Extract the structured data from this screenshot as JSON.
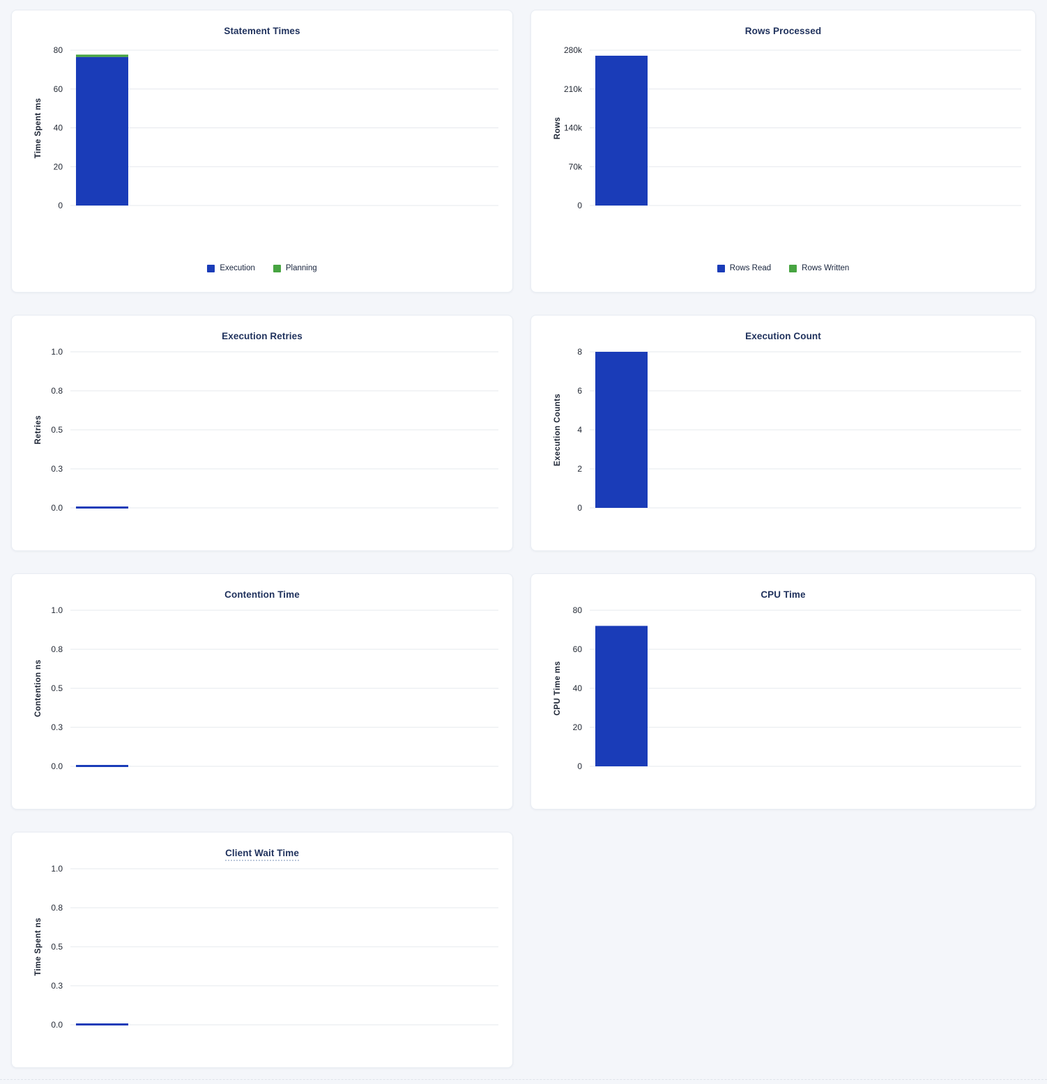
{
  "colors": {
    "page_background": "#f4f6fa",
    "card_background": "#ffffff",
    "title_navy": "#1f315c",
    "grid_line": "#e6e8ee",
    "tick_text": "#242a35",
    "bar_blue": "#1a3cb8",
    "bar_green": "#47a441"
  },
  "chart_data": [
    {
      "type": "bar",
      "title": "Statement Times",
      "ylabel": "Time Spent ms",
      "ylim": [
        0,
        80
      ],
      "yticks": [
        "80",
        "60",
        "40",
        "20",
        "0"
      ],
      "tick_values": [
        80,
        60,
        40,
        20,
        0
      ],
      "grid": true,
      "stacked": true,
      "legend_position": "bottom",
      "series": [
        {
          "name": "Execution",
          "value": 76.5,
          "color": "#1a3cb8"
        },
        {
          "name": "Planning",
          "value": 1.2,
          "color": "#47a441"
        }
      ]
    },
    {
      "type": "bar",
      "title": "Rows Processed",
      "ylabel": "Rows",
      "ylim": [
        0,
        280000
      ],
      "yticks": [
        "280k",
        "210k",
        "140k",
        "70k",
        "0"
      ],
      "tick_values": [
        280000,
        210000,
        140000,
        70000,
        0
      ],
      "grid": true,
      "stacked": true,
      "legend_position": "bottom",
      "series": [
        {
          "name": "Rows Read",
          "value": 270000,
          "color": "#1a3cb8"
        },
        {
          "name": "Rows Written",
          "value": 0,
          "color": "#47a441"
        }
      ]
    },
    {
      "type": "bar",
      "title": "Execution Retries",
      "ylabel": "Retries",
      "ylim": [
        0,
        1
      ],
      "yticks": [
        "1.0",
        "0.8",
        "0.5",
        "0.3",
        "0.0"
      ],
      "tick_values": [
        1,
        0.75,
        0.5,
        0.25,
        0
      ],
      "grid": true,
      "stacked": false,
      "legend_position": "none",
      "series": [
        {
          "value": 0,
          "color": "#1a3cb8"
        }
      ]
    },
    {
      "type": "bar",
      "title": "Execution Count",
      "ylabel": "Execution Counts",
      "ylim": [
        0,
        8
      ],
      "yticks": [
        "8",
        "6",
        "4",
        "2",
        "0"
      ],
      "tick_values": [
        8,
        6,
        4,
        2,
        0
      ],
      "grid": true,
      "stacked": false,
      "legend_position": "none",
      "series": [
        {
          "value": 8,
          "color": "#1a3cb8"
        }
      ]
    },
    {
      "type": "bar",
      "title": "Contention Time",
      "ylabel": "Contention ns",
      "ylim": [
        0,
        1
      ],
      "yticks": [
        "1.0",
        "0.8",
        "0.5",
        "0.3",
        "0.0"
      ],
      "tick_values": [
        1,
        0.75,
        0.5,
        0.25,
        0
      ],
      "grid": true,
      "stacked": false,
      "legend_position": "none",
      "series": [
        {
          "value": 0,
          "color": "#1a3cb8"
        }
      ]
    },
    {
      "type": "bar",
      "title": "CPU Time",
      "ylabel": "CPU Time ms",
      "ylim": [
        0,
        80
      ],
      "yticks": [
        "80",
        "60",
        "40",
        "20",
        "0"
      ],
      "tick_values": [
        80,
        60,
        40,
        20,
        0
      ],
      "grid": true,
      "stacked": false,
      "legend_position": "none",
      "series": [
        {
          "value": 72,
          "color": "#1a3cb8"
        }
      ]
    },
    {
      "type": "bar",
      "title": "Client Wait Time",
      "title_has_tooltip_underline": true,
      "ylabel": "Time Spent ns",
      "ylim": [
        0,
        1
      ],
      "yticks": [
        "1.0",
        "0.8",
        "0.5",
        "0.3",
        "0.0"
      ],
      "tick_values": [
        1,
        0.75,
        0.5,
        0.25,
        0
      ],
      "grid": true,
      "stacked": false,
      "legend_position": "none",
      "series": [
        {
          "value": 0,
          "color": "#1a3cb8"
        }
      ]
    }
  ]
}
